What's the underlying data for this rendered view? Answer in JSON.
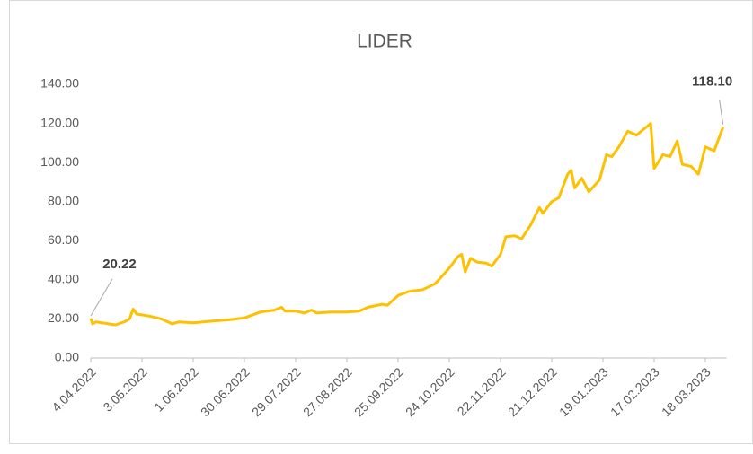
{
  "chart_data": {
    "type": "line",
    "title": "LIDER",
    "color": "#ffc000",
    "grid": false,
    "x": [
      "2022-04-04",
      "2022-04-05",
      "2022-04-07",
      "2022-04-14",
      "2022-04-18",
      "2022-04-23",
      "2022-04-26",
      "2022-04-28",
      "2022-04-30",
      "2022-05-07",
      "2022-05-14",
      "2022-05-20",
      "2022-05-24",
      "2022-06-01",
      "2022-06-13",
      "2022-06-21",
      "2022-06-30",
      "2022-07-09",
      "2022-07-17",
      "2022-07-21",
      "2022-07-23",
      "2022-07-29",
      "2022-08-03",
      "2022-08-07",
      "2022-08-10",
      "2022-08-18",
      "2022-08-27",
      "2022-09-03",
      "2022-09-08",
      "2022-09-16",
      "2022-09-19",
      "2022-09-25",
      "2022-10-01",
      "2022-10-09",
      "2022-10-16",
      "2022-10-24",
      "2022-10-29",
      "2022-10-31",
      "2022-11-02",
      "2022-11-05",
      "2022-11-09",
      "2022-11-14",
      "2022-11-17",
      "2022-11-22",
      "2022-11-25",
      "2022-11-30",
      "2022-12-04",
      "2022-12-09",
      "2022-12-14",
      "2022-12-16",
      "2022-12-21",
      "2022-12-25",
      "2022-12-30",
      "2023-01-01",
      "2023-01-03",
      "2023-01-07",
      "2023-01-11",
      "2023-01-17",
      "2023-01-21",
      "2023-01-24",
      "2023-01-28",
      "2023-02-02",
      "2023-02-07",
      "2023-02-15",
      "2023-02-17",
      "2023-02-22",
      "2023-02-26",
      "2023-03-02",
      "2023-03-05",
      "2023-03-10",
      "2023-03-14",
      "2023-03-18",
      "2023-03-23",
      "2023-03-28"
    ],
    "values": [
      20.22,
      17.5,
      18.5,
      17.5,
      17,
      18.5,
      20,
      25,
      22.5,
      21.5,
      20,
      17.5,
      18.5,
      18,
      19,
      19.5,
      20.5,
      23.5,
      24.5,
      26,
      24,
      24,
      23,
      24.5,
      23,
      23.5,
      23.5,
      24,
      26,
      27.5,
      27,
      32,
      34,
      35,
      38,
      46,
      52,
      53,
      44,
      51,
      49,
      48.5,
      47,
      53,
      62,
      62.5,
      61,
      68,
      77,
      74,
      80,
      82,
      94,
      96,
      87,
      92,
      85,
      91,
      104,
      103,
      108,
      116,
      114,
      120,
      97,
      104,
      103,
      111,
      99,
      98,
      94,
      108,
      106,
      118.1
    ],
    "value_labels": [
      "20.22",
      null,
      null,
      null,
      null,
      null,
      null,
      null,
      null,
      null,
      null,
      null,
      null,
      null,
      null,
      null,
      null,
      null,
      null,
      null,
      null,
      null,
      null,
      null,
      null,
      null,
      null,
      null,
      null,
      null,
      null,
      null,
      null,
      null,
      null,
      null,
      null,
      null,
      null,
      null,
      null,
      null,
      null,
      null,
      null,
      null,
      null,
      null,
      null,
      null,
      null,
      null,
      null,
      null,
      null,
      null,
      null,
      null,
      null,
      null,
      null,
      null,
      null,
      null,
      null,
      null,
      null,
      null,
      null,
      null,
      null,
      null,
      null,
      "118.10"
    ],
    "xlim": [
      "2022-04-04",
      "2023-03-30"
    ],
    "xticks": [
      {
        "value": "2022-04-04",
        "label": "4.04.2022"
      },
      {
        "value": "2022-05-03",
        "label": "3.05.2022"
      },
      {
        "value": "2022-06-01",
        "label": "1.06.2022"
      },
      {
        "value": "2022-06-30",
        "label": "30.06.2022"
      },
      {
        "value": "2022-07-29",
        "label": "29.07.2022"
      },
      {
        "value": "2022-08-27",
        "label": "27.08.2022"
      },
      {
        "value": "2022-09-25",
        "label": "25.09.2022"
      },
      {
        "value": "2022-10-24",
        "label": "24.10.2022"
      },
      {
        "value": "2022-11-22",
        "label": "22.11.2022"
      },
      {
        "value": "2022-12-21",
        "label": "21.12.2022"
      },
      {
        "value": "2023-01-19",
        "label": "19.01.2023"
      },
      {
        "value": "2023-02-17",
        "label": "17.02.2023"
      },
      {
        "value": "2023-03-18",
        "label": "18.03.2023"
      }
    ],
    "ylim": [
      0,
      140
    ],
    "yticks": [
      {
        "value": 0,
        "label": "0.00"
      },
      {
        "value": 20,
        "label": "20.00"
      },
      {
        "value": 40,
        "label": "40.00"
      },
      {
        "value": 60,
        "label": "60.00"
      },
      {
        "value": 80,
        "label": "80.00"
      },
      {
        "value": 100,
        "label": "100.00"
      },
      {
        "value": 120,
        "label": "120.00"
      },
      {
        "value": 140,
        "label": "140.00"
      }
    ]
  }
}
